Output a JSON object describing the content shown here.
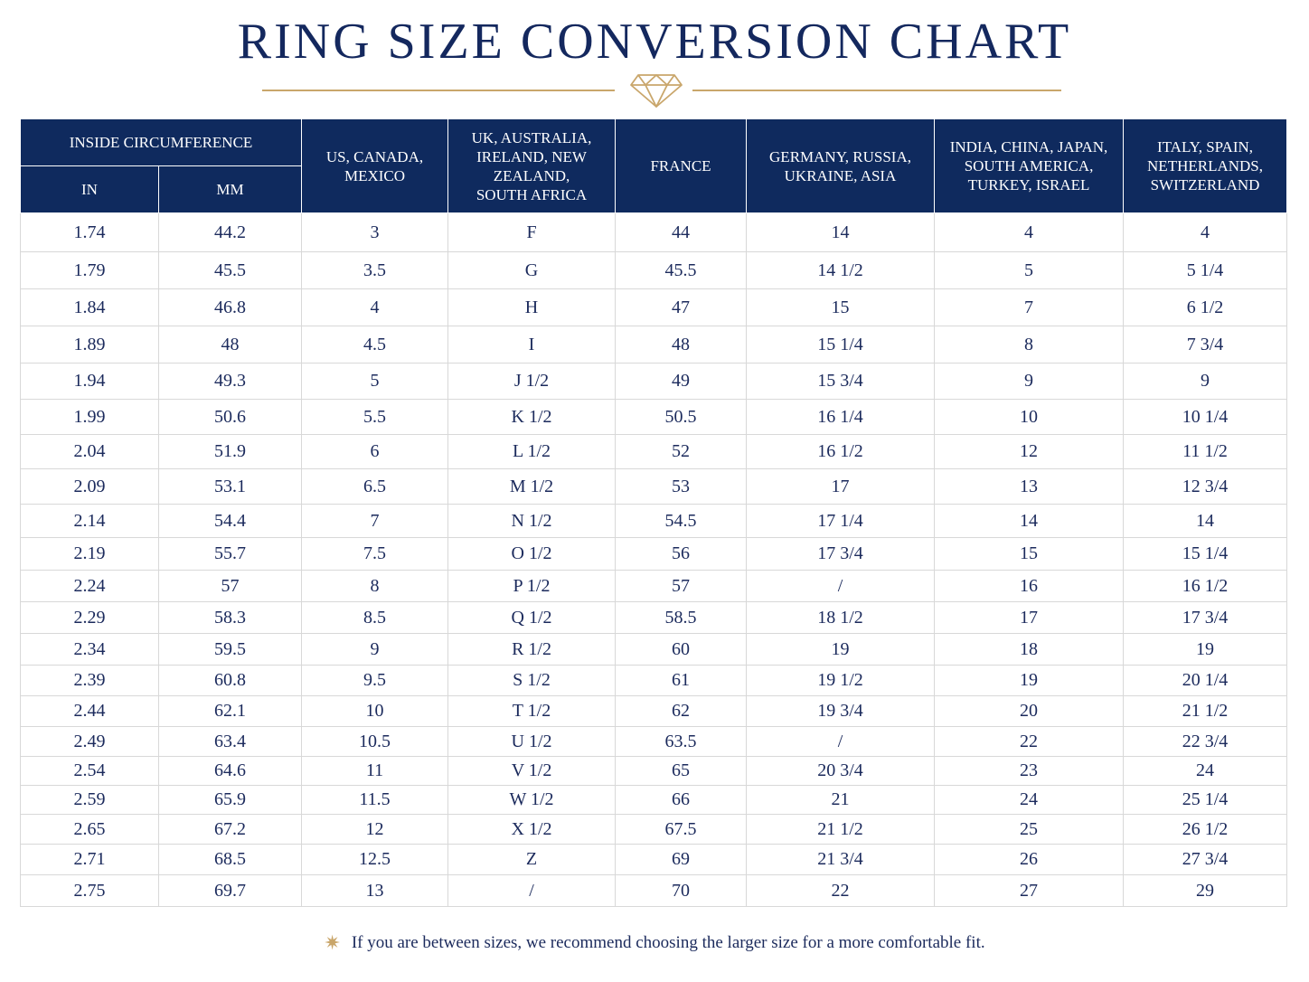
{
  "title": "RING SIZE CONVERSION CHART",
  "accent_color": "#c9a66b",
  "header_color": "#0f2a5e",
  "header": {
    "inside_circumference": "INSIDE CIRCUMFERENCE",
    "in": "IN",
    "mm": "MM",
    "us": "US, CANADA, MEXICO",
    "uk": "UK, AUSTRALIA, IRELAND, NEW ZEALAND, SOUTH AFRICA",
    "france": "FRANCE",
    "germany": "GERMANY, RUSSIA, UKRAINE, ASIA",
    "india": "INDIA, CHINA, JAPAN, SOUTH AMERICA, TURKEY, ISRAEL",
    "italy": "ITALY, SPAIN, NETHERLANDS, SWITZERLAND"
  },
  "rows": [
    [
      "1.74",
      "44.2",
      "3",
      "F",
      "44",
      "14",
      "4",
      "4"
    ],
    [
      "1.79",
      "45.5",
      "3.5",
      "G",
      "45.5",
      "14 1/2",
      "5",
      "5 1/4"
    ],
    [
      "1.84",
      "46.8",
      "4",
      "H",
      "47",
      "15",
      "7",
      "6 1/2"
    ],
    [
      "1.89",
      "48",
      "4.5",
      "I",
      "48",
      "15 1/4",
      "8",
      "7 3/4"
    ],
    [
      "1.94",
      "49.3",
      "5",
      "J 1/2",
      "49",
      "15 3/4",
      "9",
      "9"
    ],
    [
      "1.99",
      "50.6",
      "5.5",
      "K 1/2",
      "50.5",
      "16 1/4",
      "10",
      "10 1/4"
    ],
    [
      "2.04",
      "51.9",
      "6",
      "L 1/2",
      "52",
      "16 1/2",
      "12",
      "11 1/2"
    ],
    [
      "2.09",
      "53.1",
      "6.5",
      "M 1/2",
      "53",
      "17",
      "13",
      "12 3/4"
    ],
    [
      "2.14",
      "54.4",
      "7",
      "N 1/2",
      "54.5",
      "17 1/4",
      "14",
      "14"
    ],
    [
      "2.19",
      "55.7",
      "7.5",
      "O 1/2",
      "56",
      "17 3/4",
      "15",
      "15 1/4"
    ],
    [
      "2.24",
      "57",
      "8",
      "P 1/2",
      "57",
      "/",
      "16",
      "16 1/2"
    ],
    [
      "2.29",
      "58.3",
      "8.5",
      "Q 1/2",
      "58.5",
      "18 1/2",
      "17",
      "17 3/4"
    ],
    [
      "2.34",
      "59.5",
      "9",
      "R 1/2",
      "60",
      "19",
      "18",
      "19"
    ],
    [
      "2.39",
      "60.8",
      "9.5",
      "S 1/2",
      "61",
      "19 1/2",
      "19",
      "20 1/4"
    ],
    [
      "2.44",
      "62.1",
      "10",
      "T 1/2",
      "62",
      "19 3/4",
      "20",
      "21 1/2"
    ],
    [
      "2.49",
      "63.4",
      "10.5",
      "U 1/2",
      "63.5",
      "/",
      "22",
      "22 3/4"
    ],
    [
      "2.54",
      "64.6",
      "11",
      "V 1/2",
      "65",
      "20 3/4",
      "23",
      "24"
    ],
    [
      "2.59",
      "65.9",
      "11.5",
      "W 1/2",
      "66",
      "21",
      "24",
      "25 1/4"
    ],
    [
      "2.65",
      "67.2",
      "12",
      "X 1/2",
      "67.5",
      "21 1/2",
      "25",
      "26 1/2"
    ],
    [
      "2.71",
      "68.5",
      "12.5",
      "Z",
      "69",
      "21 3/4",
      "26",
      "27 3/4"
    ],
    [
      "2.75",
      "69.7",
      "13",
      "/",
      "70",
      "22",
      "27",
      "29"
    ]
  ],
  "footnote": {
    "icon": "star-icon",
    "text": "If you are between sizes, we recommend choosing the larger size for a more comfortable fit."
  }
}
